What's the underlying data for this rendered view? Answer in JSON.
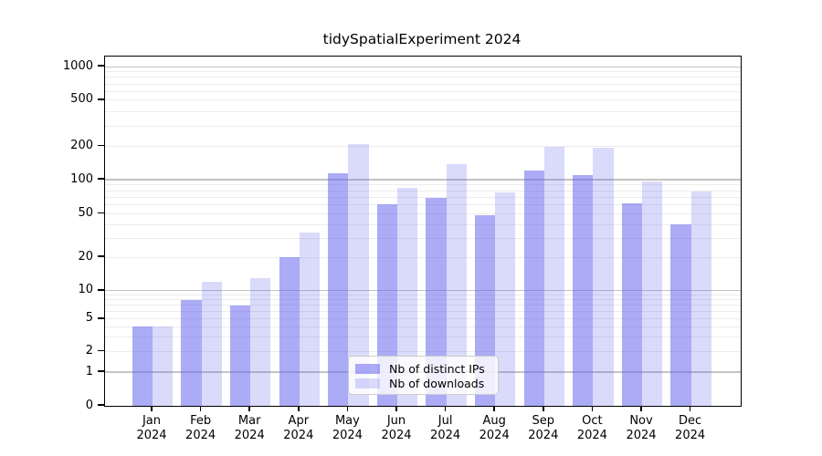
{
  "title": "tidySpatialExperiment 2024",
  "chart_data": {
    "type": "bar",
    "title": "tidySpatialExperiment 2024",
    "categories": [
      "Jan 2024",
      "Feb 2024",
      "Mar 2024",
      "Apr 2024",
      "May 2024",
      "Jun 2024",
      "Jul 2024",
      "Aug 2024",
      "Sep 2024",
      "Oct 2024",
      "Nov 2024",
      "Dec 2024"
    ],
    "months": [
      "Jan",
      "Feb",
      "Mar",
      "Apr",
      "May",
      "Jun",
      "Jul",
      "Aug",
      "Sep",
      "Oct",
      "Nov",
      "Dec"
    ],
    "year": "2024",
    "series": [
      {
        "name": "Nb of distinct IPs",
        "color": "#6666ee",
        "alpha": 0.55,
        "css_color": "rgba(102,102,238,0.55)",
        "values": [
          4,
          8,
          7,
          20,
          115,
          61,
          69,
          49,
          122,
          109,
          62,
          40
        ]
      },
      {
        "name": "Nb of downloads",
        "color": "#6666ee",
        "alpha": 0.24,
        "css_color": "rgba(102,102,238,0.24)",
        "values": [
          4,
          12,
          13,
          34,
          210,
          84,
          139,
          77,
          200,
          196,
          97,
          78
        ]
      }
    ],
    "yaxis": {
      "scale": "log-like",
      "ticks": [
        0,
        1,
        2,
        5,
        10,
        20,
        50,
        100,
        200,
        500,
        1000
      ],
      "ylim": [
        0,
        1400
      ]
    },
    "xlabel": "",
    "ylabel": "",
    "grid": true,
    "legend_position": "lower center",
    "colors": {
      "grid_major": "#c3c3c3",
      "grid_minor": "#ececec",
      "frame": "#000000",
      "background": "#ffffff"
    }
  }
}
